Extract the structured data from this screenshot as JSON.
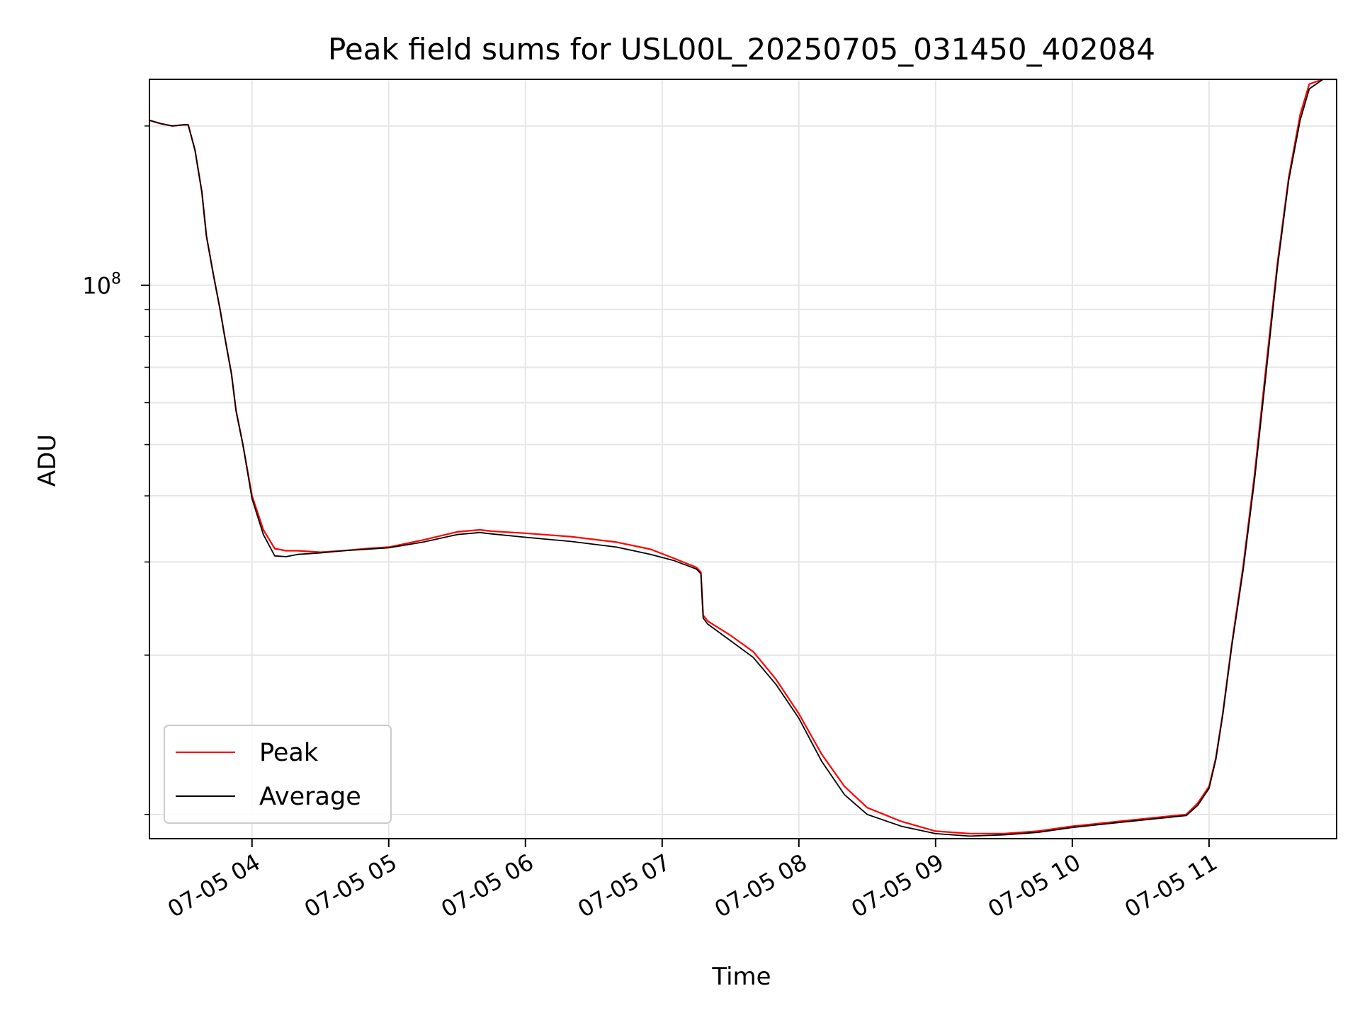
{
  "chart_data": {
    "type": "line",
    "title": "Peak field sums for USL00L_20250705_031450_402084",
    "xlabel": "Time",
    "ylabel": "ADU",
    "x_axis": {
      "kind": "datetime",
      "range": [
        "2025-07-05 03:15",
        "2025-07-05 11:56"
      ],
      "ticks": [
        {
          "value": "2025-07-05 04:00",
          "label": "07-05 04"
        },
        {
          "value": "2025-07-05 05:00",
          "label": "07-05 05"
        },
        {
          "value": "2025-07-05 06:00",
          "label": "07-05 06"
        },
        {
          "value": "2025-07-05 07:00",
          "label": "07-05 07"
        },
        {
          "value": "2025-07-05 08:00",
          "label": "07-05 08"
        },
        {
          "value": "2025-07-05 09:00",
          "label": "07-05 09"
        },
        {
          "value": "2025-07-05 10:00",
          "label": "07-05 10"
        },
        {
          "value": "2025-07-05 11:00",
          "label": "07-05 11"
        }
      ]
    },
    "y_axis": {
      "scale": "log",
      "range": [
        9000000,
        245000000
      ],
      "major_ticks": [
        {
          "value": 100000000,
          "base": "10",
          "exponent": "8"
        }
      ],
      "minor_ticks": [
        10000000,
        20000000,
        30000000,
        40000000,
        50000000,
        60000000,
        70000000,
        80000000,
        90000000,
        200000000
      ]
    },
    "grid": true,
    "legend_position": "lower-left",
    "series": [
      {
        "name": "Peak",
        "color": "#ff0000",
        "x": [
          "2025-07-05 03:15",
          "2025-07-05 03:20",
          "2025-07-05 03:25",
          "2025-07-05 03:30",
          "2025-07-05 03:32",
          "2025-07-05 03:35",
          "2025-07-05 03:38",
          "2025-07-05 03:40",
          "2025-07-05 03:43",
          "2025-07-05 03:46",
          "2025-07-05 03:48",
          "2025-07-05 03:51",
          "2025-07-05 03:53",
          "2025-07-05 03:56",
          "2025-07-05 04:00",
          "2025-07-05 04:05",
          "2025-07-05 04:10",
          "2025-07-05 04:15",
          "2025-07-05 04:20",
          "2025-07-05 04:30",
          "2025-07-05 04:40",
          "2025-07-05 04:50",
          "2025-07-05 05:00",
          "2025-07-05 05:15",
          "2025-07-05 05:30",
          "2025-07-05 05:40",
          "2025-07-05 05:45",
          "2025-07-05 06:00",
          "2025-07-05 06:20",
          "2025-07-05 06:40",
          "2025-07-05 06:55",
          "2025-07-05 07:05",
          "2025-07-05 07:15",
          "2025-07-05 07:17",
          "2025-07-05 07:18",
          "2025-07-05 07:20",
          "2025-07-05 07:30",
          "2025-07-05 07:40",
          "2025-07-05 07:50",
          "2025-07-05 08:00",
          "2025-07-05 08:10",
          "2025-07-05 08:20",
          "2025-07-05 08:30",
          "2025-07-05 08:45",
          "2025-07-05 09:00",
          "2025-07-05 09:15",
          "2025-07-05 09:30",
          "2025-07-05 09:45",
          "2025-07-05 10:00",
          "2025-07-05 10:20",
          "2025-07-05 10:40",
          "2025-07-05 10:50",
          "2025-07-05 10:55",
          "2025-07-05 11:00",
          "2025-07-05 11:03",
          "2025-07-05 11:06",
          "2025-07-05 11:10",
          "2025-07-05 11:15",
          "2025-07-05 11:20",
          "2025-07-05 11:25",
          "2025-07-05 11:30",
          "2025-07-05 11:35",
          "2025-07-05 11:40",
          "2025-07-05 11:44",
          "2025-07-05 11:50",
          "2025-07-05 11:56"
        ],
        "values": [
          205000000,
          202000000,
          200000000,
          201000000,
          201000000,
          180000000,
          150000000,
          124000000,
          105000000,
          90000000,
          80000000,
          68000000,
          58000000,
          50000000,
          40000000,
          34500000,
          31800000,
          31500000,
          31500000,
          31300000,
          31500000,
          31800000,
          32000000,
          33000000,
          34200000,
          34500000,
          34300000,
          34000000,
          33500000,
          32700000,
          31700000,
          30500000,
          29300000,
          28700000,
          23800000,
          23200000,
          21800000,
          20300000,
          18000000,
          15500000,
          13000000,
          11300000,
          10300000,
          9700000,
          9300000,
          9200000,
          9200000,
          9300000,
          9500000,
          9700000,
          9900000,
          10000000,
          10500000,
          11300000,
          12800000,
          15500000,
          21000000,
          29500000,
          44000000,
          70000000,
          110000000,
          160000000,
          210000000,
          240000000,
          245000000,
          245000000
        ]
      },
      {
        "name": "Average",
        "color": "#000000",
        "x": [
          "2025-07-05 03:15",
          "2025-07-05 03:20",
          "2025-07-05 03:25",
          "2025-07-05 03:30",
          "2025-07-05 03:32",
          "2025-07-05 03:35",
          "2025-07-05 03:38",
          "2025-07-05 03:40",
          "2025-07-05 03:43",
          "2025-07-05 03:46",
          "2025-07-05 03:48",
          "2025-07-05 03:51",
          "2025-07-05 03:53",
          "2025-07-05 03:56",
          "2025-07-05 04:00",
          "2025-07-05 04:05",
          "2025-07-05 04:10",
          "2025-07-05 04:15",
          "2025-07-05 04:20",
          "2025-07-05 04:30",
          "2025-07-05 04:40",
          "2025-07-05 04:50",
          "2025-07-05 05:00",
          "2025-07-05 05:15",
          "2025-07-05 05:30",
          "2025-07-05 05:40",
          "2025-07-05 05:45",
          "2025-07-05 06:00",
          "2025-07-05 06:20",
          "2025-07-05 06:40",
          "2025-07-05 06:55",
          "2025-07-05 07:05",
          "2025-07-05 07:15",
          "2025-07-05 07:17",
          "2025-07-05 07:18",
          "2025-07-05 07:20",
          "2025-07-05 07:30",
          "2025-07-05 07:40",
          "2025-07-05 07:50",
          "2025-07-05 08:00",
          "2025-07-05 08:10",
          "2025-07-05 08:20",
          "2025-07-05 08:30",
          "2025-07-05 08:45",
          "2025-07-05 09:00",
          "2025-07-05 09:15",
          "2025-07-05 09:30",
          "2025-07-05 09:45",
          "2025-07-05 10:00",
          "2025-07-05 10:20",
          "2025-07-05 10:40",
          "2025-07-05 10:50",
          "2025-07-05 10:55",
          "2025-07-05 11:00",
          "2025-07-05 11:03",
          "2025-07-05 11:06",
          "2025-07-05 11:10",
          "2025-07-05 11:15",
          "2025-07-05 11:20",
          "2025-07-05 11:25",
          "2025-07-05 11:30",
          "2025-07-05 11:35",
          "2025-07-05 11:40",
          "2025-07-05 11:44",
          "2025-07-05 11:50",
          "2025-07-05 11:56"
        ],
        "values": [
          205000000,
          202000000,
          200000000,
          201000000,
          201000000,
          180000000,
          150000000,
          124000000,
          105000000,
          90000000,
          80000000,
          68000000,
          58000000,
          50000000,
          39500000,
          33800000,
          30800000,
          30700000,
          31000000,
          31200000,
          31500000,
          31700000,
          31900000,
          32700000,
          33800000,
          34100000,
          33900000,
          33400000,
          32800000,
          32000000,
          31000000,
          30200000,
          29100000,
          28500000,
          23500000,
          22900000,
          21300000,
          19800000,
          17600000,
          15200000,
          12600000,
          10900000,
          10000000,
          9500000,
          9200000,
          9100000,
          9150000,
          9250000,
          9450000,
          9650000,
          9850000,
          9950000,
          10400000,
          11200000,
          12700000,
          15400000,
          20800000,
          29000000,
          43000000,
          68000000,
          108000000,
          158000000,
          205000000,
          235000000,
          245000000,
          245000000
        ]
      }
    ]
  }
}
